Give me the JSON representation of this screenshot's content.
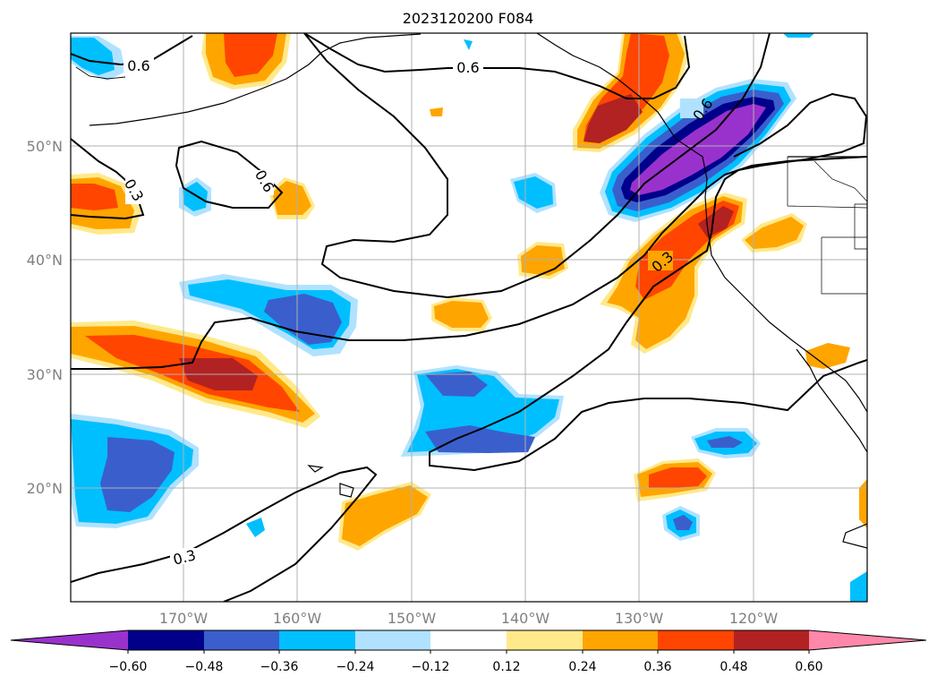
{
  "title": "2023120200 F084",
  "map": {
    "lon_ticks": [
      "170°W",
      "160°W",
      "150°W",
      "140°W",
      "130°W",
      "120°W"
    ],
    "lat_ticks": [
      "50°N",
      "40°N",
      "30°N",
      "20°N"
    ],
    "contour_labels": [
      "0.6",
      "0.6",
      "0.6",
      "0.3",
      "0.3",
      "0.6",
      "0.3"
    ],
    "colors": {
      "ocean": "#ffffff",
      "coast": "#000000",
      "grid": "#b0b0b0",
      "contour": "#000000"
    }
  },
  "colorbar": {
    "ticks": [
      "−0.60",
      "−0.48",
      "−0.36",
      "−0.24",
      "−0.12",
      "0.12",
      "0.24",
      "0.36",
      "0.48",
      "0.60"
    ],
    "colors": [
      "#9932cc",
      "#00008b",
      "#3a5fcd",
      "#00bfff",
      "#b0e2ff",
      "#ffffff",
      "#ffe98a",
      "#ffa500",
      "#ff4500",
      "#b22222",
      "#ff88aa"
    ]
  }
}
